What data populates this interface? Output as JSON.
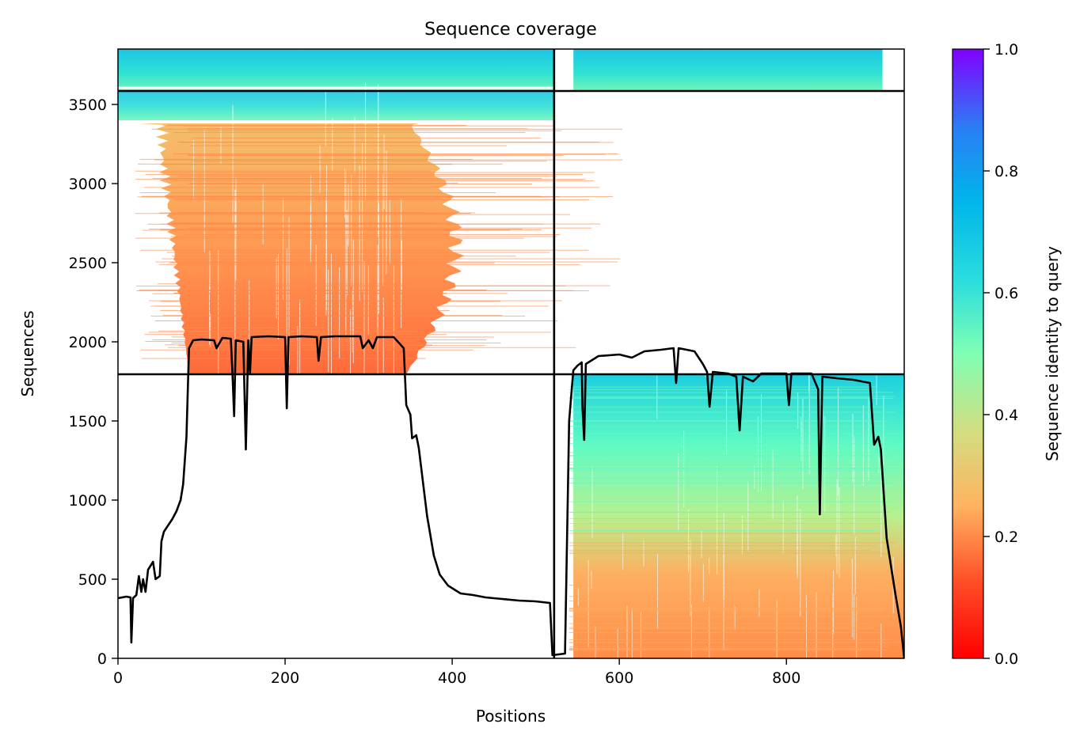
{
  "chart_data": {
    "type": "heatmap",
    "title": "Sequence coverage",
    "xlabel": "Positions",
    "ylabel": "Sequences",
    "xlim": [
      0,
      941
    ],
    "ylim": [
      0,
      3850
    ],
    "x_ticks": [
      0,
      200,
      400,
      600,
      800
    ],
    "y_ticks": [
      0,
      500,
      1000,
      1500,
      2000,
      2500,
      3000,
      3500
    ],
    "colorbar": {
      "label": "Sequence identity to query",
      "colormap": "rainbow",
      "range": [
        0,
        1
      ],
      "ticks": [
        "0.0",
        "0.2",
        "0.4",
        "0.6",
        "0.8",
        "1.0"
      ]
    },
    "divider_lines": {
      "vertical_x": 522,
      "horizontal_y": [
        1795,
        3585
      ]
    },
    "alignment_blocks": [
      {
        "segment": "domain-1",
        "x_range": [
          0,
          522
        ],
        "rows": [
          1795,
          3585
        ],
        "coverage_x": [
          25,
          420
        ],
        "identity_range": [
          0.15,
          0.3
        ]
      },
      {
        "segment": "domain-1-top",
        "x_range": [
          0,
          522
        ],
        "rows": [
          3585,
          3850
        ],
        "coverage_x": [
          0,
          522
        ],
        "identity_range": [
          0.5,
          0.65
        ]
      },
      {
        "segment": "domain-2",
        "x_range": [
          522,
          941
        ],
        "rows": [
          0,
          1795
        ],
        "coverage_x": [
          545,
          941
        ],
        "identity_range": [
          0.18,
          0.62
        ]
      },
      {
        "segment": "domain-2-top",
        "x_range": [
          522,
          941
        ],
        "rows": [
          3585,
          3850
        ],
        "coverage_x": [
          545,
          941
        ],
        "identity_range": [
          0.55,
          0.65
        ]
      }
    ],
    "coverage_line": {
      "name": "coverage",
      "color": "#000000",
      "points": [
        [
          0,
          380
        ],
        [
          10,
          390
        ],
        [
          15,
          385
        ],
        [
          16,
          100
        ],
        [
          18,
          380
        ],
        [
          22,
          400
        ],
        [
          25,
          520
        ],
        [
          28,
          420
        ],
        [
          30,
          500
        ],
        [
          33,
          420
        ],
        [
          36,
          560
        ],
        [
          42,
          610
        ],
        [
          45,
          500
        ],
        [
          50,
          520
        ],
        [
          52,
          740
        ],
        [
          55,
          800
        ],
        [
          60,
          840
        ],
        [
          65,
          880
        ],
        [
          70,
          930
        ],
        [
          75,
          1000
        ],
        [
          78,
          1100
        ],
        [
          82,
          1400
        ],
        [
          85,
          1960
        ],
        [
          90,
          2010
        ],
        [
          100,
          2015
        ],
        [
          115,
          2010
        ],
        [
          118,
          1960
        ],
        [
          125,
          2025
        ],
        [
          135,
          2020
        ],
        [
          137,
          1800
        ],
        [
          139,
          1530
        ],
        [
          141,
          2010
        ],
        [
          150,
          2000
        ],
        [
          153,
          1320
        ],
        [
          156,
          2010
        ],
        [
          158,
          1800
        ],
        [
          160,
          2030
        ],
        [
          180,
          2035
        ],
        [
          200,
          2030
        ],
        [
          202,
          1580
        ],
        [
          204,
          2030
        ],
        [
          220,
          2035
        ],
        [
          238,
          2030
        ],
        [
          240,
          1880
        ],
        [
          243,
          2030
        ],
        [
          260,
          2035
        ],
        [
          290,
          2035
        ],
        [
          293,
          1960
        ],
        [
          300,
          2010
        ],
        [
          305,
          1960
        ],
        [
          310,
          2030
        ],
        [
          330,
          2030
        ],
        [
          342,
          1960
        ],
        [
          345,
          1600
        ],
        [
          350,
          1540
        ],
        [
          352,
          1390
        ],
        [
          357,
          1410
        ],
        [
          360,
          1330
        ],
        [
          370,
          900
        ],
        [
          378,
          650
        ],
        [
          385,
          530
        ],
        [
          395,
          460
        ],
        [
          410,
          410
        ],
        [
          425,
          400
        ],
        [
          440,
          385
        ],
        [
          460,
          375
        ],
        [
          480,
          365
        ],
        [
          500,
          360
        ],
        [
          517,
          350
        ],
        [
          520,
          20
        ],
        [
          535,
          30
        ],
        [
          540,
          1500
        ],
        [
          545,
          1820
        ],
        [
          550,
          1850
        ],
        [
          555,
          1870
        ],
        [
          556,
          1580
        ],
        [
          558,
          1380
        ],
        [
          560,
          1860
        ],
        [
          575,
          1910
        ],
        [
          600,
          1920
        ],
        [
          615,
          1900
        ],
        [
          630,
          1940
        ],
        [
          650,
          1950
        ],
        [
          665,
          1960
        ],
        [
          668,
          1740
        ],
        [
          671,
          1960
        ],
        [
          690,
          1940
        ],
        [
          700,
          1860
        ],
        [
          705,
          1810
        ],
        [
          708,
          1590
        ],
        [
          712,
          1810
        ],
        [
          730,
          1800
        ],
        [
          740,
          1780
        ],
        [
          744,
          1440
        ],
        [
          748,
          1780
        ],
        [
          760,
          1750
        ],
        [
          770,
          1800
        ],
        [
          800,
          1800
        ],
        [
          803,
          1600
        ],
        [
          806,
          1800
        ],
        [
          830,
          1800
        ],
        [
          838,
          1700
        ],
        [
          840,
          910
        ],
        [
          843,
          1780
        ],
        [
          860,
          1770
        ],
        [
          880,
          1760
        ],
        [
          900,
          1740
        ],
        [
          905,
          1350
        ],
        [
          910,
          1400
        ],
        [
          913,
          1320
        ],
        [
          920,
          760
        ],
        [
          930,
          420
        ],
        [
          937,
          200
        ],
        [
          941,
          0
        ]
      ]
    }
  }
}
